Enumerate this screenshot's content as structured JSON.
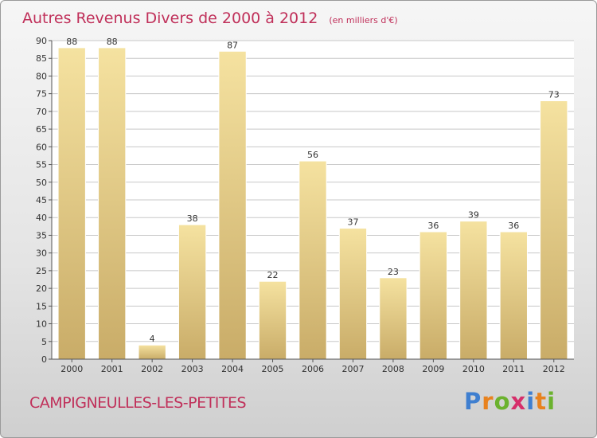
{
  "header": {
    "title": "Autres Revenus Divers de 2000 à 2012",
    "unit": "(en milliers d'€)"
  },
  "footer": {
    "commune": "CAMPIGNEULLES-LES-PETITES",
    "logo_letters": [
      "P",
      "r",
      "o",
      "x",
      "i",
      "t",
      "i"
    ],
    "logo_colors": [
      "#3f7fd0",
      "#e8821e",
      "#6bb22e",
      "#d62e6a",
      "#3f7fd0",
      "#e8821e",
      "#6bb22e"
    ]
  },
  "colors": {
    "title": "#c0305a",
    "bar_top": "#f5e2a0",
    "bar_bottom": "#c9ac68"
  },
  "chart_data": {
    "type": "bar",
    "title": "Autres Revenus Divers de 2000 à 2012",
    "subtitle": "(en milliers d'€)",
    "categories": [
      "2000",
      "2001",
      "2002",
      "2003",
      "2004",
      "2005",
      "2006",
      "2007",
      "2008",
      "2009",
      "2010",
      "2011",
      "2012"
    ],
    "values": [
      88,
      88,
      4,
      38,
      87,
      22,
      56,
      37,
      23,
      36,
      39,
      36,
      73
    ],
    "data_labels": [
      "88",
      "88",
      "4",
      "38",
      "87",
      "22",
      "56",
      "37",
      "23",
      "36",
      "39",
      "36",
      "73"
    ],
    "ylim": [
      0,
      90
    ],
    "yticks": [
      0,
      5,
      10,
      15,
      20,
      25,
      30,
      35,
      40,
      45,
      50,
      55,
      60,
      65,
      70,
      75,
      80,
      85,
      90
    ],
    "ytick_labels": [
      "0",
      "5",
      "10",
      "15",
      "20",
      "25",
      "30",
      "35",
      "40",
      "45",
      "50",
      "55",
      "60",
      "65",
      "70",
      "75",
      "80",
      "85",
      "90"
    ],
    "grid": true,
    "xlabel": "",
    "ylabel": ""
  }
}
